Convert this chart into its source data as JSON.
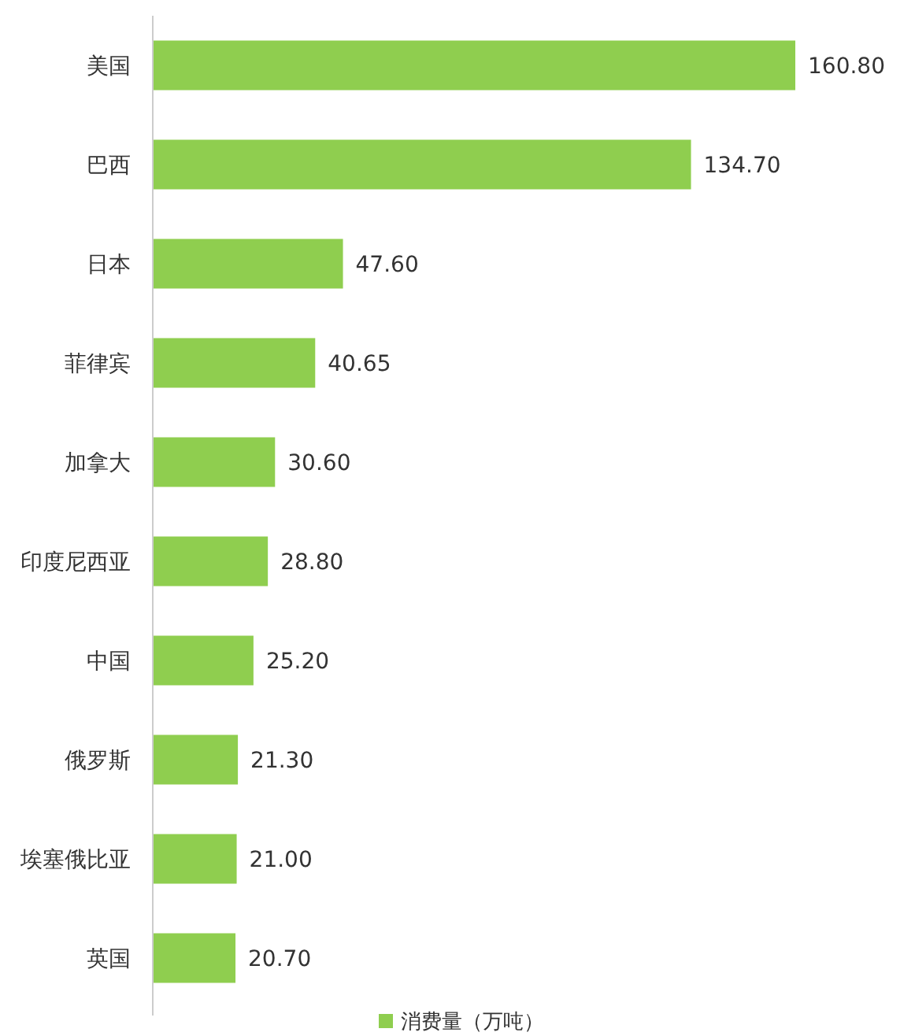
{
  "chart_data": {
    "type": "bar",
    "orientation": "horizontal",
    "categories": [
      "美国",
      "巴西",
      "日本",
      "菲律宾",
      "加拿大",
      "印度尼西亚",
      "中国",
      "俄罗斯",
      "埃塞俄比亚",
      "英国"
    ],
    "series": [
      {
        "name": "消费量（万吨）",
        "color": "#8fce4f",
        "values": [
          160.8,
          134.7,
          47.6,
          40.65,
          30.6,
          28.8,
          25.2,
          21.3,
          21.0,
          20.7
        ],
        "value_labels": [
          "160.80",
          "134.70",
          "47.60",
          "40.65",
          "30.60",
          "28.80",
          "25.20",
          "21.30",
          "21.00",
          "20.70"
        ]
      }
    ],
    "legend": "bottom"
  }
}
